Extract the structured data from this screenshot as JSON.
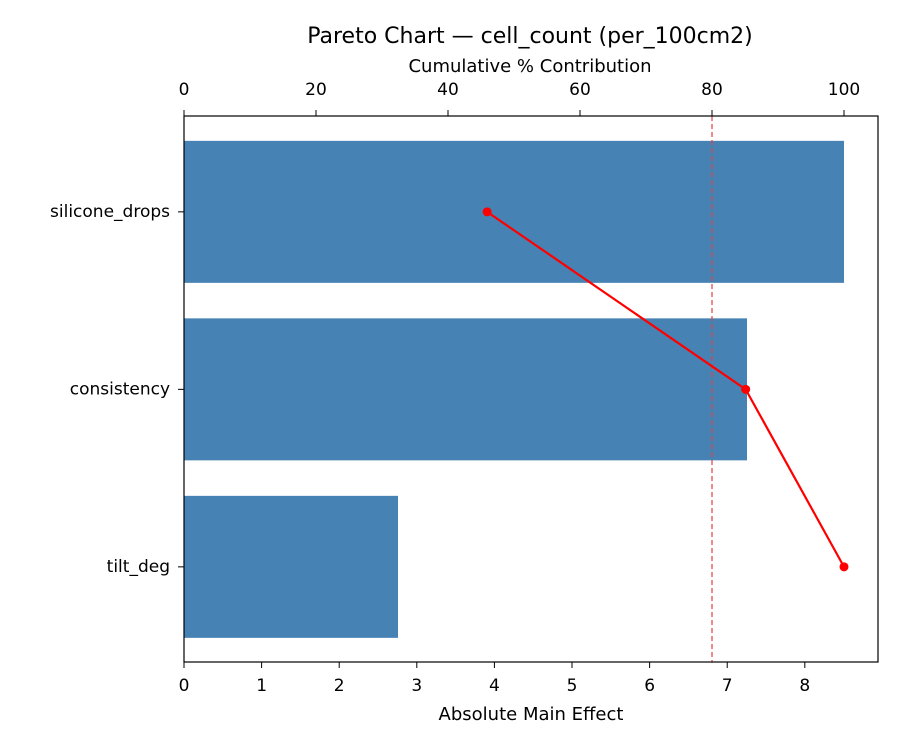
{
  "chart_data": {
    "type": "bar",
    "orientation": "horizontal",
    "title": "Pareto Chart — cell_count (per_100cm2)",
    "xlabel": "Absolute Main Effect",
    "x2label": "Cumulative % Contribution",
    "categories": [
      "silicone_drops",
      "consistency",
      "tilt_deg"
    ],
    "values": [
      8.505,
      7.255,
      2.758
    ],
    "color": "#4682b4",
    "cumulative": {
      "values": [
        45.93,
        85.1,
        100
      ],
      "color": "#ff0000",
      "axis": "x2"
    },
    "threshold": 80,
    "threshold_color": "#e04040",
    "xlim": [
      0,
      8.943
    ],
    "xticks": [
      0,
      1,
      2,
      3,
      4,
      5,
      6,
      7,
      8
    ],
    "x2lim": [
      0,
      105.15
    ],
    "x2ticks": [
      0,
      20,
      40,
      60,
      80,
      100
    ]
  }
}
